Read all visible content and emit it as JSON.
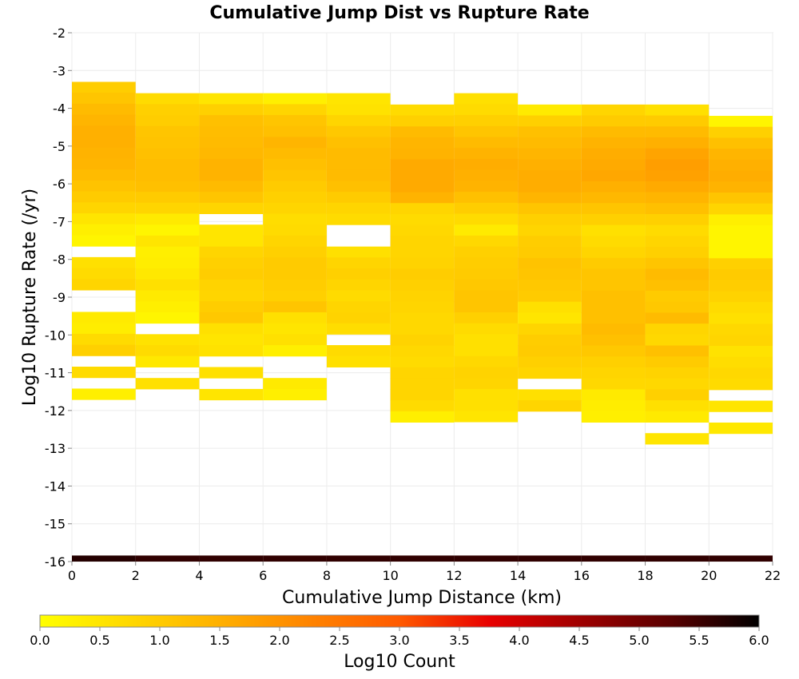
{
  "chart_data": {
    "type": "heatmap",
    "title": "Cumulative Jump Dist vs Rupture Rate",
    "xlabel": "Cumulative Jump Distance (km)",
    "ylabel": "Log10 Rupture Rate (/yr)",
    "xlim": [
      0,
      22
    ],
    "ylim": [
      -16,
      -2
    ],
    "xticks": [
      "0",
      "2",
      "4",
      "6",
      "8",
      "10",
      "12",
      "14",
      "16",
      "18",
      "20",
      "22"
    ],
    "yticks": [
      "-2",
      "-3",
      "-4",
      "-5",
      "-6",
      "-7",
      "-8",
      "-9",
      "-10",
      "-11",
      "-12",
      "-13",
      "-14",
      "-15",
      "-16"
    ],
    "x_bin_width": 2,
    "y_bin_height": 0.29,
    "grid": true,
    "colorbar": {
      "label": "Log10 Count",
      "min": 0.0,
      "max": 6.0,
      "ticks": [
        "0.0",
        "0.5",
        "1.0",
        "1.5",
        "2.0",
        "2.5",
        "3.0",
        "3.5",
        "4.0",
        "4.5",
        "5.0",
        "5.5",
        "6.0"
      ],
      "stops": [
        "#ffff00",
        "#ffd800",
        "#ffb000",
        "#ff8400",
        "#ff5a00",
        "#e80000",
        "#a00000",
        "#5a0000",
        "#000000"
      ]
    },
    "columns": [
      {
        "x": 0,
        "y_top": -3.3,
        "values": [
          0.95,
          1.1,
          1.3,
          1.4,
          1.5,
          1.5,
          1.45,
          1.4,
          1.3,
          1.15,
          1.0,
          0.8,
          0.5,
          0.3,
          0.2,
          null,
          0.6,
          0.7,
          0.8,
          null,
          null,
          0.4,
          0.35,
          0.7,
          0.9,
          null,
          0.7,
          null,
          0.3
        ]
      },
      {
        "x": 2,
        "y_top": -3.6,
        "values": [
          0.7,
          0.9,
          0.95,
          1.1,
          1.15,
          1.2,
          1.25,
          1.25,
          1.2,
          1.0,
          0.8,
          0.4,
          0.2,
          0.5,
          0.3,
          0.35,
          0.45,
          0.6,
          0.4,
          0.3,
          0.2,
          null,
          0.55,
          0.7,
          0.45,
          null,
          0.6
        ]
      },
      {
        "x": 4,
        "y_top": -3.6,
        "values": [
          0.5,
          0.9,
          1.2,
          1.25,
          1.3,
          1.35,
          1.45,
          1.45,
          1.3,
          1.1,
          0.8,
          null,
          0.5,
          0.5,
          0.8,
          0.9,
          0.95,
          0.85,
          0.8,
          0.95,
          1.05,
          0.6,
          0.5,
          0.55,
          null,
          0.6,
          null,
          0.5
        ]
      },
      {
        "x": 6,
        "y_top": -3.6,
        "values": [
          0.3,
          0.8,
          1.1,
          1.2,
          1.4,
          1.3,
          1.2,
          1.1,
          1.0,
          0.9,
          0.8,
          0.65,
          0.7,
          0.8,
          0.9,
          1.0,
          1.0,
          0.95,
          0.9,
          1.1,
          0.6,
          0.5,
          0.6,
          0.3,
          null,
          null,
          0.4,
          0.3
        ]
      },
      {
        "x": 8,
        "y_top": -3.6,
        "values": [
          0.5,
          0.55,
          0.8,
          1.05,
          1.2,
          1.3,
          1.3,
          1.3,
          1.2,
          1.0,
          0.8,
          0.7,
          null,
          null,
          0.6,
          0.8,
          0.9,
          0.8,
          0.7,
          0.8,
          0.85,
          0.65,
          null,
          0.7,
          0.6
        ]
      },
      {
        "x": 10,
        "y_top": -3.9,
        "values": [
          0.7,
          0.9,
          1.3,
          1.4,
          1.45,
          1.6,
          1.6,
          1.6,
          1.45,
          0.8,
          0.7,
          0.75,
          0.8,
          0.8,
          0.85,
          0.95,
          0.9,
          0.85,
          0.8,
          0.75,
          0.75,
          0.85,
          0.75,
          0.7,
          0.8,
          0.8,
          0.8,
          0.7,
          0.3
        ]
      },
      {
        "x": 12,
        "y_top": -3.6,
        "values": [
          0.6,
          0.7,
          0.9,
          1.1,
          1.3,
          1.45,
          1.55,
          1.5,
          1.45,
          1.2,
          0.95,
          0.7,
          0.4,
          0.75,
          0.9,
          0.95,
          1.0,
          1.05,
          1.1,
          1.1,
          0.9,
          0.7,
          0.6,
          0.6,
          0.75,
          0.85,
          0.8,
          0.6,
          0.6,
          0.5
        ]
      },
      {
        "x": 14,
        "y_top": -3.9,
        "values": [
          0.4,
          0.9,
          1.2,
          1.3,
          1.4,
          1.5,
          1.55,
          1.55,
          1.4,
          1.1,
          0.9,
          0.8,
          0.95,
          1.0,
          1.15,
          1.1,
          1.05,
          1.0,
          0.6,
          0.5,
          0.8,
          0.95,
          1.0,
          0.9,
          0.8,
          null,
          0.6,
          0.8
        ]
      },
      {
        "x": 16,
        "y_top": -3.9,
        "values": [
          0.8,
          1.0,
          1.3,
          1.45,
          1.55,
          1.6,
          1.65,
          1.5,
          1.35,
          1.1,
          0.9,
          0.6,
          0.7,
          0.8,
          1.0,
          1.1,
          1.1,
          1.2,
          1.2,
          1.2,
          1.3,
          1.2,
          1.05,
          0.9,
          0.8,
          0.75,
          0.4,
          0.35,
          0.3
        ]
      },
      {
        "x": 18,
        "y_top": -3.9,
        "values": [
          0.6,
          1.0,
          1.3,
          1.5,
          1.7,
          1.8,
          1.75,
          1.6,
          1.4,
          1.2,
          0.9,
          0.7,
          0.8,
          0.9,
          1.1,
          1.3,
          1.2,
          1.0,
          1.05,
          1.3,
          0.8,
          0.75,
          1.2,
          1.0,
          0.85,
          0.75,
          0.9,
          0.6,
          0.4,
          null,
          0.5
        ]
      },
      {
        "x": 20,
        "y_top": -4.2,
        "values": [
          0.2,
          0.9,
          1.2,
          1.4,
          1.5,
          1.55,
          1.45,
          1.1,
          0.8,
          0.3,
          0.2,
          0.2,
          0.2,
          0.9,
          1.0,
          0.95,
          0.85,
          0.7,
          0.6,
          0.75,
          0.8,
          0.55,
          0.65,
          0.75,
          0.7,
          null,
          0.5,
          null,
          0.45
        ]
      }
    ],
    "bottom_bins": [
      {
        "x": 0,
        "y": -16,
        "value": 5.7
      },
      {
        "x": 2,
        "y": -16,
        "value": 5.6
      },
      {
        "x": 4,
        "y": -16,
        "value": 5.6
      },
      {
        "x": 6,
        "y": -16,
        "value": 5.6
      },
      {
        "x": 8,
        "y": -16,
        "value": 5.6
      },
      {
        "x": 10,
        "y": -16,
        "value": 5.6
      },
      {
        "x": 12,
        "y": -16,
        "value": 5.6
      },
      {
        "x": 14,
        "y": -16,
        "value": 5.6
      },
      {
        "x": 16,
        "y": -16,
        "value": 5.6
      },
      {
        "x": 18,
        "y": -16,
        "value": 5.6
      },
      {
        "x": 20,
        "y": -16,
        "value": 5.6
      }
    ]
  }
}
